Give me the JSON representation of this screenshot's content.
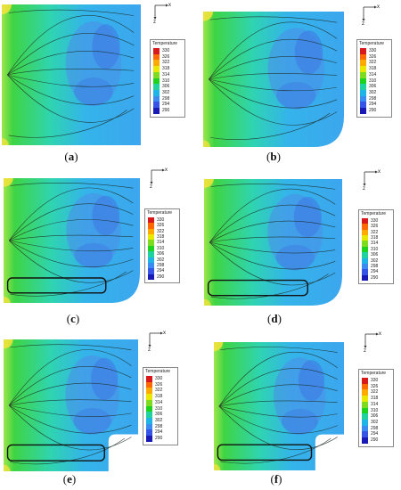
{
  "legend": {
    "title": "Temperature",
    "ticks": [
      "330",
      "326",
      "322",
      "318",
      "314",
      "310",
      "306",
      "302",
      "298",
      "294",
      "290"
    ],
    "colors": [
      "#d7191c",
      "#ff6a00",
      "#ffaa00",
      "#e8e800",
      "#7ddc1f",
      "#1fd21f",
      "#1fd2a0",
      "#1fb4e6",
      "#3a8cf0",
      "#3655e6",
      "#1a1ab4"
    ]
  },
  "axes": {
    "x": "x",
    "z": "z"
  },
  "panels": [
    {
      "caption_open": "(",
      "caption_letter": "a",
      "caption_close": ")"
    },
    {
      "caption_open": "(",
      "caption_letter": "b",
      "caption_close": ")"
    },
    {
      "caption_open": "(",
      "caption_letter": "c",
      "caption_close": ")"
    },
    {
      "caption_open": "(",
      "caption_letter": "d",
      "caption_close": ")"
    },
    {
      "caption_open": "(",
      "caption_letter": "e",
      "caption_close": ")"
    },
    {
      "caption_open": "(",
      "caption_letter": "f",
      "caption_close": ")"
    }
  ]
}
